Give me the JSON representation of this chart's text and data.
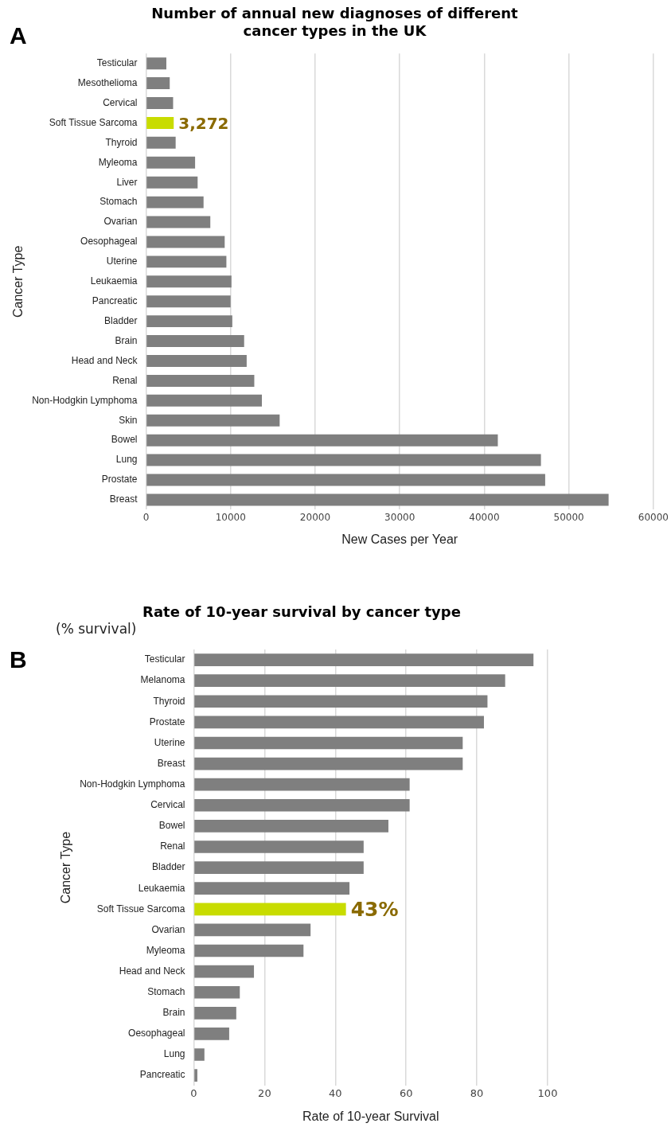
{
  "chart_data": [
    {
      "type": "bar",
      "orientation": "horizontal",
      "title": "Number of annual new diagnoses of different cancer types in the UK",
      "xlabel": "New Cases per Year",
      "ylabel": "Cancer Type",
      "annotations": [
        "A"
      ],
      "categories": [
        "Testicular",
        "Mesothelioma",
        "Cervical",
        "Soft Tissue Sarcoma",
        "Thyroid",
        "Myleoma",
        "Liver",
        "Stomach",
        "Ovarian",
        "Oesophageal",
        "Uterine",
        "Leukaemia",
        "Pancreatic",
        "Bladder",
        "Brain",
        "Head and Neck",
        "Renal",
        "Non-Hodgkin Lymphoma",
        "Skin",
        "Bowel",
        "Lung",
        "Prostate",
        "Breast"
      ],
      "values": [
        2400,
        2800,
        3200,
        3272,
        3500,
        5800,
        6100,
        6800,
        7600,
        9300,
        9500,
        10100,
        10000,
        10200,
        11600,
        11900,
        12800,
        13700,
        15800,
        41600,
        46700,
        47200,
        54700
      ],
      "colors": [
        "#7f7f7f",
        "#7f7f7f",
        "#7f7f7f",
        "#c8dc00",
        "#7f7f7f",
        "#7f7f7f",
        "#7f7f7f",
        "#7f7f7f",
        "#7f7f7f",
        "#7f7f7f",
        "#7f7f7f",
        "#7f7f7f",
        "#7f7f7f",
        "#7f7f7f",
        "#7f7f7f",
        "#7f7f7f",
        "#7f7f7f",
        "#7f7f7f",
        "#7f7f7f",
        "#7f7f7f",
        "#7f7f7f",
        "#7f7f7f",
        "#7f7f7f"
      ],
      "value_labels": [
        null,
        null,
        null,
        "3,272",
        null,
        null,
        null,
        null,
        null,
        null,
        null,
        null,
        null,
        null,
        null,
        null,
        null,
        null,
        null,
        null,
        null,
        null,
        null
      ],
      "xlim": [
        0,
        60000
      ],
      "xticks": [
        0,
        10000,
        20000,
        30000,
        40000,
        50000,
        60000
      ],
      "grid": "x",
      "legend": false
    },
    {
      "type": "bar",
      "orientation": "horizontal",
      "title": "Rate of 10-year survival by cancer type",
      "subtitle": "(% survival)",
      "xlabel": "Rate of 10-year Survival",
      "ylabel": "Cancer Type",
      "annotations": [
        "B"
      ],
      "categories": [
        "Testicular",
        "Melanoma",
        "Thyroid",
        "Prostate",
        "Uterine",
        "Breast",
        "Non-Hodgkin Lymphoma",
        "Cervical",
        "Bowel",
        "Renal",
        "Bladder",
        "Leukaemia",
        "Soft Tissue Sarcoma",
        "Ovarian",
        "Myleoma",
        "Head and Neck",
        "Stomach",
        "Brain",
        "Oesophageal",
        "Lung",
        "Pancreatic"
      ],
      "values": [
        96,
        88,
        83,
        82,
        76,
        76,
        61,
        61,
        55,
        48,
        48,
        44,
        43,
        33,
        31,
        17,
        13,
        12,
        10,
        3,
        1
      ],
      "colors": [
        "#7f7f7f",
        "#7f7f7f",
        "#7f7f7f",
        "#7f7f7f",
        "#7f7f7f",
        "#7f7f7f",
        "#7f7f7f",
        "#7f7f7f",
        "#7f7f7f",
        "#7f7f7f",
        "#7f7f7f",
        "#7f7f7f",
        "#c8dc00",
        "#7f7f7f",
        "#7f7f7f",
        "#7f7f7f",
        "#7f7f7f",
        "#7f7f7f",
        "#7f7f7f",
        "#7f7f7f",
        "#7f7f7f"
      ],
      "value_labels": [
        null,
        null,
        null,
        null,
        null,
        null,
        null,
        null,
        null,
        null,
        null,
        null,
        "43%",
        null,
        null,
        null,
        null,
        null,
        null,
        null,
        null
      ],
      "xlim": [
        0,
        100
      ],
      "xticks": [
        0,
        20,
        40,
        60,
        80,
        100
      ],
      "grid": "x",
      "legend": false
    }
  ]
}
